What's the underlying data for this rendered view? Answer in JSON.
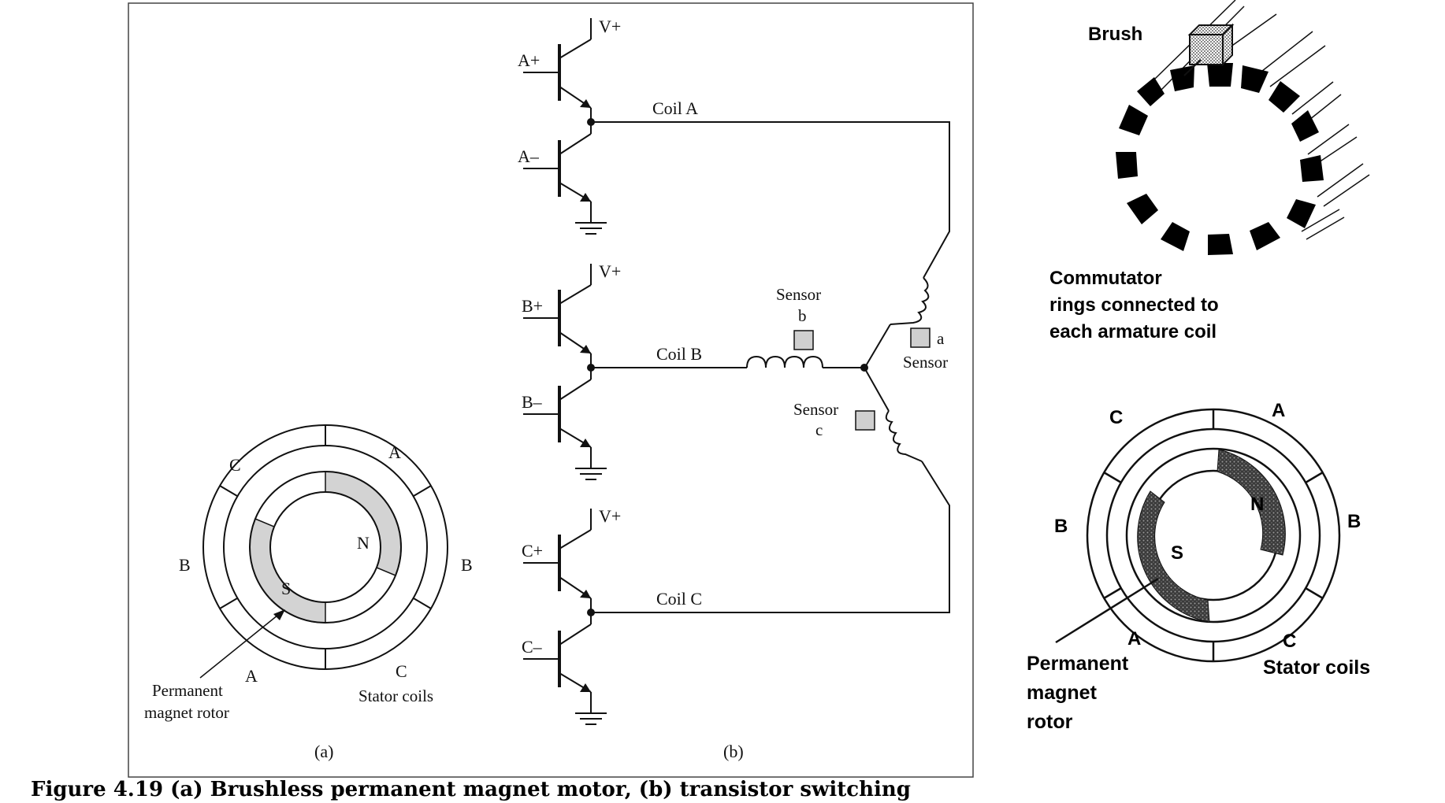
{
  "figure_caption": "Figure 4.19  (a) Brushless permanent magnet motor, (b) transistor switching",
  "panel_a": {
    "label": "(a)",
    "stator_labels": {
      "a_top": "A",
      "c_top": "C",
      "b_left": "B",
      "b_right": "B",
      "a_bottom": "A",
      "c_bottom": "C"
    },
    "pole_n": "N",
    "pole_s": "S",
    "rotor_label_line1": "Permanent",
    "rotor_label_line2": "magnet rotor",
    "stator_label": "Stator coils"
  },
  "panel_b": {
    "label": "(b)",
    "supply": "V+",
    "transistors": {
      "a_plus": "A+",
      "a_minus": "A–",
      "b_plus": "B+",
      "b_minus": "B–",
      "c_plus": "C+",
      "c_minus": "C–"
    },
    "coils": {
      "a": "Coil A",
      "b": "Coil B",
      "c": "Coil C"
    },
    "sensor_b_line1": "Sensor",
    "sensor_b_line2": "b",
    "sensor_a_letter": "a",
    "sensor_a_word": "Sensor",
    "sensor_c_line1": "Sensor",
    "sensor_c_line2": "c"
  },
  "brushed": {
    "brush_label": "Brush",
    "commutator_line1": "Commutator",
    "commutator_line2": "rings connected to",
    "commutator_line3": "each armature coil"
  },
  "right_motor": {
    "stator_labels": {
      "a_top": "A",
      "c_top": "C",
      "b_left": "B",
      "b_right": "B",
      "a_bottom": "A",
      "c_bottom": "C"
    },
    "pole_n": "N",
    "pole_s": "S",
    "rotor_line1": "Permanent",
    "rotor_line2": "magnet",
    "rotor_line3": "rotor",
    "stator_label": "Stator coils"
  }
}
